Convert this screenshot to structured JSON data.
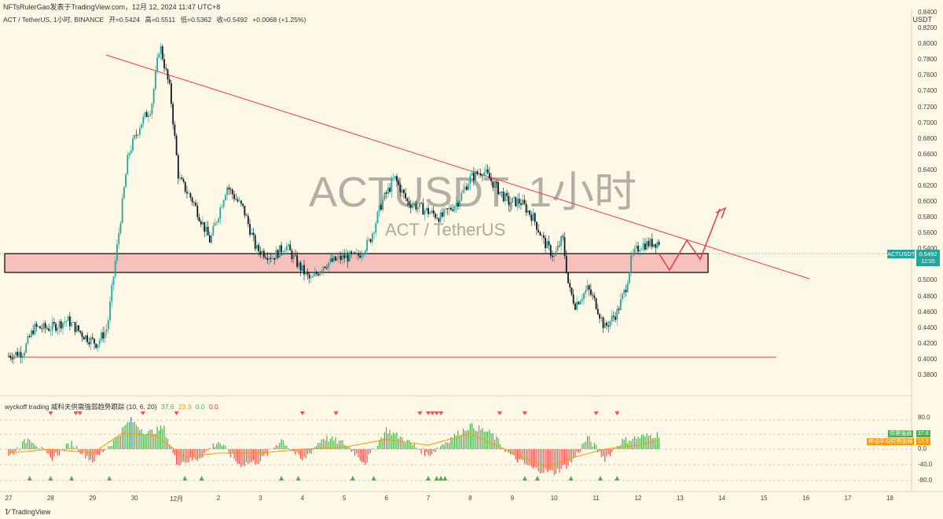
{
  "header": {
    "text": "NFTsRulerGao发表于TradingView.com，12月 12, 2024 11:47 UTC+8"
  },
  "legend": {
    "symbol": "ACT / TetherUS, 1小时, BINANCE",
    "open": "开=0.5424",
    "high": "高=0.5511",
    "low": "低=0.5362",
    "close": "收=0.5492",
    "change": "+0.0068 (+1.25%)"
  },
  "watermark": {
    "title": "ACTUSDT, 1小时",
    "subtitle": "ACT / TetherUS"
  },
  "currency": "USDT",
  "price_tags": {
    "symbol": "ACTUSDT",
    "price": "0.5492",
    "countdown": "12:55"
  },
  "indicator": {
    "name": "wyckoff trading 威科夫供需強弱趋势跟踪 (10, 6, 20)",
    "v1": "37.6",
    "v2": "23.3",
    "v3": "0.0",
    "v4": "0.0",
    "tag1_label": "供需強弱",
    "tag1_value": "37.6",
    "tag2_label": "移动平均供需強弱",
    "tag2_value": "23.3",
    "colors": {
      "v1": "#4caf50",
      "v2": "#ff9800",
      "v3": "#4caf50",
      "v4": "#e53935"
    }
  },
  "footer": "TradingView",
  "colors": {
    "up": "#26a69a",
    "down": "#131722",
    "trend": "#f23645",
    "zone": "#f7b6b3"
  },
  "chart_data": [
    {
      "type": "candlestick",
      "title": "ACT / TetherUS, 1小时, BINANCE",
      "ylabel": "USDT",
      "ylim": [
        0.37,
        0.84
      ],
      "y_ticks": [
        "0.8400",
        "0.8200",
        "0.8000",
        "0.7800",
        "0.7600",
        "0.7400",
        "0.7200",
        "0.7000",
        "0.6800",
        "0.6600",
        "0.6400",
        "0.6200",
        "0.6000",
        "0.5800",
        "0.5600",
        "0.5400",
        "0.5200",
        "0.5000",
        "0.4800",
        "0.4600",
        "0.4400",
        "0.4200",
        "0.4000",
        "0.3800"
      ],
      "y_tick_values": [
        0.84,
        0.82,
        0.8,
        0.78,
        0.76,
        0.74,
        0.72,
        0.7,
        0.68,
        0.66,
        0.64,
        0.62,
        0.6,
        0.58,
        0.56,
        0.54,
        0.52,
        0.5,
        0.48,
        0.46,
        0.44,
        0.42,
        0.4,
        0.38
      ],
      "x_ticks": [
        "27",
        "28",
        "29",
        "30",
        "12月",
        "2",
        "3",
        "4",
        "5",
        "6",
        "7",
        "8",
        "9",
        "10",
        "11",
        "12",
        "13",
        "14",
        "15",
        "16",
        "17",
        "18"
      ],
      "x_tick_values": [
        0,
        1,
        2,
        3,
        4,
        5,
        6,
        7,
        8,
        9,
        10,
        11,
        12,
        13,
        14,
        15,
        16,
        17,
        18,
        19,
        20,
        21
      ],
      "x_unit": "day index from 27 Nov",
      "price_path": [
        [
          0,
          0.405
        ],
        [
          0.35,
          0.41
        ],
        [
          0.6,
          0.44
        ],
        [
          1.0,
          0.44
        ],
        [
          1.4,
          0.45
        ],
        [
          1.8,
          0.43
        ],
        [
          2.1,
          0.42
        ],
        [
          2.35,
          0.44
        ],
        [
          2.6,
          0.55
        ],
        [
          2.85,
          0.66
        ],
        [
          3.15,
          0.7
        ],
        [
          3.4,
          0.72
        ],
        [
          3.6,
          0.8
        ],
        [
          3.85,
          0.74
        ],
        [
          4.05,
          0.63
        ],
        [
          4.4,
          0.6
        ],
        [
          4.8,
          0.55
        ],
        [
          5.2,
          0.62
        ],
        [
          5.6,
          0.59
        ],
        [
          5.9,
          0.54
        ],
        [
          6.3,
          0.53
        ],
        [
          6.6,
          0.545
        ],
        [
          6.9,
          0.52
        ],
        [
          7.2,
          0.5
        ],
        [
          7.5,
          0.52
        ],
        [
          8.0,
          0.53
        ],
        [
          8.3,
          0.53
        ],
        [
          8.6,
          0.55
        ],
        [
          8.9,
          0.6
        ],
        [
          9.2,
          0.63
        ],
        [
          9.5,
          0.6
        ],
        [
          9.9,
          0.59
        ],
        [
          10.3,
          0.58
        ],
        [
          10.7,
          0.6
        ],
        [
          11.0,
          0.63
        ],
        [
          11.3,
          0.64
        ],
        [
          11.6,
          0.62
        ],
        [
          11.9,
          0.6
        ],
        [
          12.2,
          0.6
        ],
        [
          12.5,
          0.58
        ],
        [
          12.75,
          0.55
        ],
        [
          13.0,
          0.53
        ],
        [
          13.2,
          0.555
        ],
        [
          13.35,
          0.49
        ],
        [
          13.5,
          0.47
        ],
        [
          13.8,
          0.49
        ],
        [
          14.0,
          0.47
        ],
        [
          14.2,
          0.44
        ],
        [
          14.5,
          0.46
        ],
        [
          14.7,
          0.49
        ],
        [
          14.85,
          0.53
        ],
        [
          15.05,
          0.545
        ],
        [
          15.5,
          0.5492
        ]
      ],
      "last_price": 0.5492,
      "annotations": {
        "downtrend_line": [
          [
            2.35,
            0.8075
          ],
          [
            19.0,
            0.5155
          ]
        ],
        "support_line": [
          [
            0,
            0.417
          ],
          [
            18.5,
            0.417
          ]
        ],
        "supply_zone": {
          "x": [
            0,
            16.7
          ],
          "y": [
            0.5228,
            0.5492
          ]
        },
        "projection_path": [
          [
            15.5,
            0.549
          ],
          [
            15.8,
            0.53
          ],
          [
            16.2,
            0.566
          ],
          [
            16.5,
            0.54
          ],
          [
            16.9,
            0.61
          ]
        ]
      }
    },
    {
      "type": "bar",
      "title": "wyckoff trading 威科夫供需強弱趋势跟踪 (10, 6, 20)",
      "ylim": [
        -90,
        90
      ],
      "y_ticks": [
        "80.0",
        "40.0",
        "0.0",
        "-40.0",
        "-80.0"
      ],
      "y_tick_values": [
        80,
        40,
        0,
        -40,
        -80
      ],
      "series": [
        {
          "name": "供需強弱",
          "last": 37.6,
          "path": [
            [
              0,
              -20
            ],
            [
              0.5,
              30
            ],
            [
              1.0,
              -25
            ],
            [
              1.5,
              15
            ],
            [
              2.0,
              -30
            ],
            [
              2.5,
              20
            ],
            [
              2.9,
              75
            ],
            [
              3.3,
              40
            ],
            [
              3.7,
              55
            ],
            [
              4.0,
              -35
            ],
            [
              4.5,
              -25
            ],
            [
              5.0,
              20
            ],
            [
              5.5,
              -40
            ],
            [
              6.0,
              -30
            ],
            [
              6.5,
              25
            ],
            [
              7.0,
              -30
            ],
            [
              7.5,
              30
            ],
            [
              8.0,
              15
            ],
            [
              8.5,
              -35
            ],
            [
              9.0,
              50
            ],
            [
              9.5,
              20
            ],
            [
              10.0,
              -15
            ],
            [
              10.5,
              25
            ],
            [
              11.0,
              60
            ],
            [
              11.5,
              40
            ],
            [
              12.0,
              -20
            ],
            [
              12.5,
              -50
            ],
            [
              13.0,
              -60
            ],
            [
              13.4,
              -35
            ],
            [
              13.8,
              30
            ],
            [
              14.2,
              -25
            ],
            [
              14.6,
              20
            ],
            [
              15.0,
              30
            ],
            [
              15.5,
              37.6
            ]
          ]
        },
        {
          "name": "移动平均供需強弱",
          "last": 23.3,
          "path": [
            [
              0,
              -10
            ],
            [
              1,
              0
            ],
            [
              2,
              -10
            ],
            [
              2.7,
              40
            ],
            [
              3.5,
              35
            ],
            [
              4.2,
              -20
            ],
            [
              5,
              -10
            ],
            [
              6,
              -10
            ],
            [
              7,
              0
            ],
            [
              8,
              5
            ],
            [
              9,
              25
            ],
            [
              10,
              10
            ],
            [
              11,
              40
            ],
            [
              12,
              -10
            ],
            [
              12.8,
              -45
            ],
            [
              13.5,
              -20
            ],
            [
              14.2,
              0
            ],
            [
              15,
              10
            ],
            [
              15.5,
              23.3
            ]
          ]
        }
      ]
    }
  ]
}
